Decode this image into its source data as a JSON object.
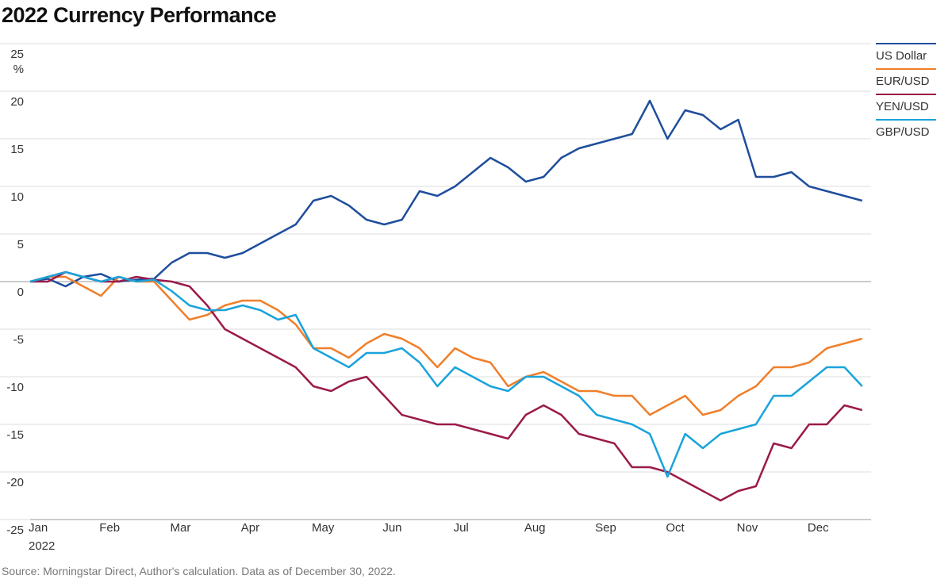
{
  "chart_data": {
    "type": "line",
    "title": "2022 Currency Performance",
    "y_unit": "%",
    "year_label": "2022",
    "source": "Source: Morningstar Direct, Author's calculation. Data as of December 30, 2022.",
    "categories": [
      "Jan",
      null,
      null,
      null,
      "Feb",
      null,
      null,
      null,
      "Mar",
      null,
      null,
      null,
      "Apr",
      null,
      null,
      null,
      "May",
      null,
      null,
      null,
      "Jun",
      null,
      null,
      null,
      "Jul",
      null,
      null,
      null,
      "Aug",
      null,
      null,
      null,
      "Sep",
      null,
      null,
      null,
      "Oct",
      null,
      null,
      null,
      "Nov",
      null,
      null,
      null,
      "Dec",
      null,
      null,
      null
    ],
    "ylim": [
      -25,
      25
    ],
    "yticks": [
      -25,
      -20,
      -15,
      -10,
      -5,
      0,
      5,
      10,
      15,
      20,
      25
    ],
    "grid": true,
    "legend": "right",
    "series": [
      {
        "name": "US Dollar",
        "color": "#1f4e9c",
        "values": [
          0,
          0.3,
          -0.5,
          0.5,
          0.8,
          0,
          0.2,
          0.3,
          2,
          3,
          3,
          2.5,
          3,
          4,
          5,
          6,
          8.5,
          9,
          8,
          6.5,
          6,
          6.5,
          9.5,
          9,
          10,
          11.5,
          13,
          12,
          10.5,
          11,
          13,
          14,
          14.5,
          15,
          15.5,
          19,
          15,
          18,
          17.5,
          16,
          17,
          11,
          11,
          11.5,
          10,
          9.5,
          9,
          8.5
        ]
      },
      {
        "name": "EUR/USD",
        "color": "#f07f2a",
        "values": [
          0,
          0.5,
          0.5,
          -0.5,
          -1.5,
          0.5,
          0,
          0,
          -2,
          -4,
          -3.5,
          -2.5,
          -2,
          -2,
          -3,
          -4.5,
          -7,
          -7,
          -8,
          -6.5,
          -5.5,
          -6,
          -7,
          -9,
          -7,
          -8,
          -8.5,
          -11,
          -10,
          -9.5,
          -10.5,
          -11.5,
          -11.5,
          -12,
          -12,
          -14,
          -13,
          -12,
          -14,
          -13.5,
          -12,
          -11,
          -9,
          -9,
          -8.5,
          -7,
          -6.5,
          -6
        ]
      },
      {
        "name": "YEN/USD",
        "color": "#9b1b4b",
        "values": [
          0,
          0,
          1,
          0.5,
          0,
          0,
          0.5,
          0.2,
          0,
          -0.5,
          -2.5,
          -5,
          -6,
          -7,
          -8,
          -9,
          -11,
          -11.5,
          -10.5,
          -10,
          -12,
          -14,
          -14.5,
          -15,
          -15,
          -15.5,
          -16,
          -16.5,
          -14,
          -13,
          -14,
          -16,
          -16.5,
          -17,
          -19.5,
          -19.5,
          -20,
          -21,
          -22,
          -23,
          -22,
          -21.5,
          -17,
          -17.5,
          -15,
          -15,
          -13,
          -13.5
        ]
      },
      {
        "name": "GBP/USD",
        "color": "#1aa3db",
        "values": [
          0,
          0.5,
          1,
          0.5,
          0,
          0.5,
          0,
          0.2,
          -1,
          -2.5,
          -3,
          -3,
          -2.5,
          -3,
          -4,
          -3.5,
          -7,
          -8,
          -9,
          -7.5,
          -7.5,
          -7,
          -8.5,
          -11,
          -9,
          -10,
          -11,
          -11.5,
          -10,
          -10,
          -11,
          -12,
          -14,
          -14.5,
          -15,
          -16,
          -20.5,
          -16,
          -17.5,
          -16,
          -15.5,
          -15,
          -12,
          -12,
          -10.5,
          -9,
          -9,
          -11
        ]
      }
    ]
  }
}
